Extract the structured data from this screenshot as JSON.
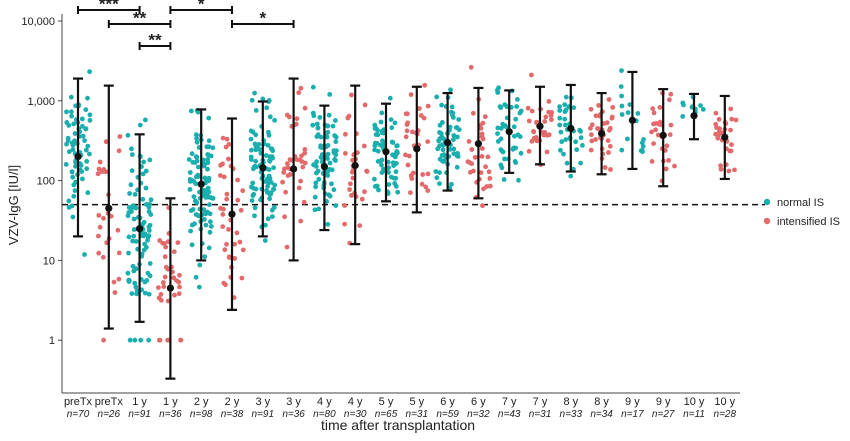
{
  "chart_data": {
    "type": "scatter",
    "title": "",
    "xlabel": "time after transplantation",
    "ylabel": "VZV-IgG [IU/l]",
    "y_scale": "log",
    "ylim": [
      0.2,
      10000
    ],
    "y_ticks": [
      1,
      10,
      100,
      1000,
      10000
    ],
    "y_tick_labels": [
      "1",
      "10",
      "100",
      "1,000",
      "10,000"
    ],
    "threshold": 50,
    "legend_position": "right",
    "legend": [
      {
        "label": "normal IS",
        "color": "#1aaeae"
      },
      {
        "label": "intensified IS",
        "color": "#e36a6a"
      }
    ],
    "categories": [
      {
        "label": "preTx",
        "n_label": "n=70",
        "group": "normal IS",
        "median": 200,
        "q_low": 20,
        "q_high": 1900
      },
      {
        "label": "preTx",
        "n_label": "n=26",
        "group": "intensified IS",
        "median": 45,
        "q_low": 1.4,
        "q_high": 1550
      },
      {
        "label": "1 y",
        "n_label": "n=91",
        "group": "normal IS",
        "median": 25,
        "q_low": 1.7,
        "q_high": 380
      },
      {
        "label": "1 y",
        "n_label": "n=36",
        "group": "intensified IS",
        "median": 4.5,
        "q_low": 0.33,
        "q_high": 60
      },
      {
        "label": "2 y",
        "n_label": "n=98",
        "group": "normal IS",
        "median": 90,
        "q_low": 10,
        "q_high": 780
      },
      {
        "label": "2 y",
        "n_label": "n=38",
        "group": "intensified IS",
        "median": 38,
        "q_low": 2.4,
        "q_high": 600
      },
      {
        "label": "3 y",
        "n_label": "n=91",
        "group": "normal IS",
        "median": 145,
        "q_low": 20,
        "q_high": 980
      },
      {
        "label": "3 y",
        "n_label": "n=36",
        "group": "intensified IS",
        "median": 140,
        "q_low": 10,
        "q_high": 1900
      },
      {
        "label": "4 y",
        "n_label": "n=80",
        "group": "normal IS",
        "median": 150,
        "q_low": 24,
        "q_high": 870
      },
      {
        "label": "4 y",
        "n_label": "n=30",
        "group": "intensified IS",
        "median": 155,
        "q_low": 16,
        "q_high": 1550
      },
      {
        "label": "5 y",
        "n_label": "n=65",
        "group": "normal IS",
        "median": 230,
        "q_low": 55,
        "q_high": 920
      },
      {
        "label": "5 y",
        "n_label": "n=31",
        "group": "intensified IS",
        "median": 250,
        "q_low": 40,
        "q_high": 1500
      },
      {
        "label": "6 y",
        "n_label": "n=59",
        "group": "normal IS",
        "median": 300,
        "q_low": 75,
        "q_high": 1250
      },
      {
        "label": "6 y",
        "n_label": "n=32",
        "group": "intensified IS",
        "median": 290,
        "q_low": 60,
        "q_high": 1450
      },
      {
        "label": "7 y",
        "n_label": "n=43",
        "group": "normal IS",
        "median": 410,
        "q_low": 125,
        "q_high": 1350
      },
      {
        "label": "7 y",
        "n_label": "n=31",
        "group": "intensified IS",
        "median": 480,
        "q_low": 160,
        "q_high": 1500
      },
      {
        "label": "8 y",
        "n_label": "n=33",
        "group": "normal IS",
        "median": 450,
        "q_low": 130,
        "q_high": 1580
      },
      {
        "label": "8 y",
        "n_label": "n=34",
        "group": "intensified IS",
        "median": 390,
        "q_low": 120,
        "q_high": 1250
      },
      {
        "label": "9 y",
        "n_label": "n=17",
        "group": "normal IS",
        "median": 570,
        "q_low": 140,
        "q_high": 2300
      },
      {
        "label": "9 y",
        "n_label": "n=27",
        "group": "intensified IS",
        "median": 370,
        "q_low": 85,
        "q_high": 1400
      },
      {
        "label": "10 y",
        "n_label": "n=11",
        "group": "normal IS",
        "median": 650,
        "q_low": 330,
        "q_high": 1220
      },
      {
        "label": "10 y",
        "n_label": "n=28",
        "group": "intensified IS",
        "median": 350,
        "q_low": 105,
        "q_high": 1150
      }
    ],
    "significance": [
      {
        "from": 0,
        "to": 2,
        "level": 0,
        "label": "***"
      },
      {
        "from": 1,
        "to": 3,
        "level": 1,
        "label": "**"
      },
      {
        "from": 2,
        "to": 3,
        "level": 2,
        "label": "**"
      },
      {
        "from": 3,
        "to": 5,
        "level": 0,
        "label": "*"
      },
      {
        "from": 5,
        "to": 7,
        "level": 1,
        "label": "*"
      }
    ]
  }
}
